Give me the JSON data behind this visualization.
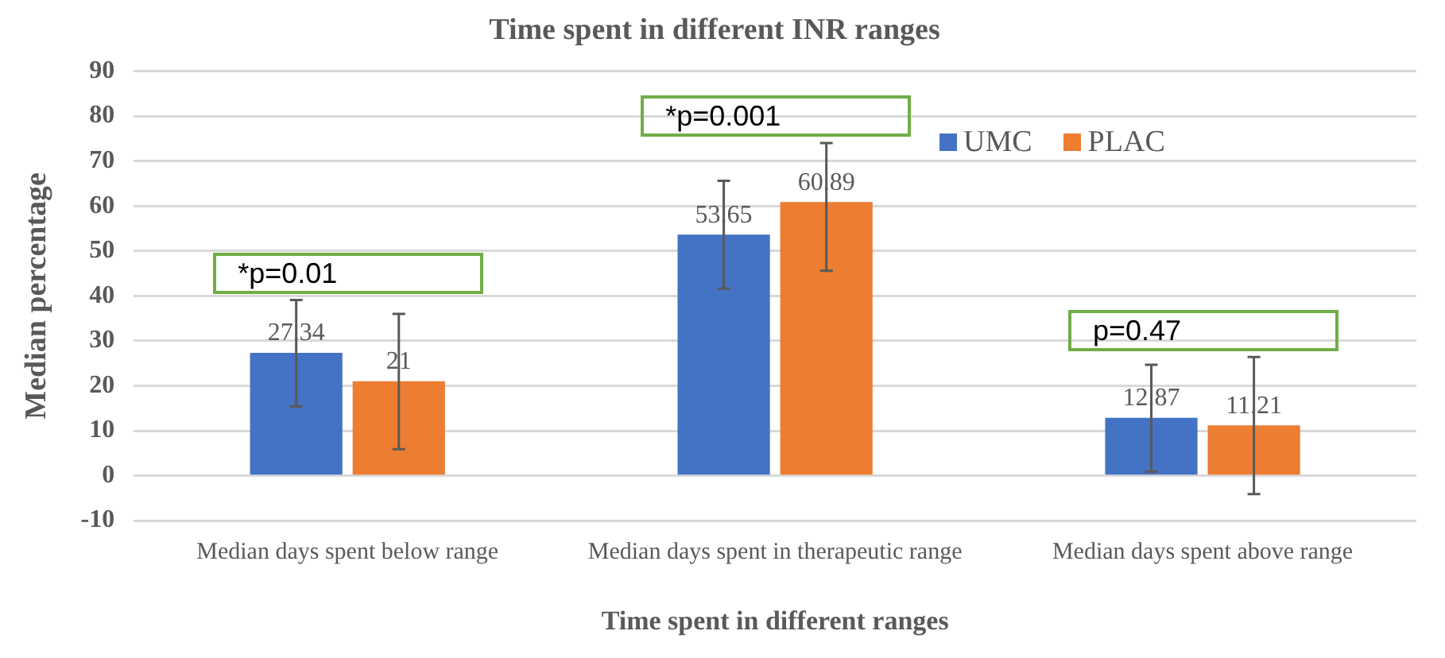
{
  "chart_data": {
    "type": "bar",
    "title": "Time spent in different INR ranges",
    "xlabel": "Time spent in different ranges",
    "ylabel": "Median percentage",
    "categories": [
      "Median days spent below range",
      "Median days spent in therapeutic range",
      "Median days spent above range"
    ],
    "series": [
      {
        "name": "UMC",
        "color": "#4472c4",
        "values": [
          27.34,
          53.65,
          12.87
        ],
        "errors": [
          [
            15.4,
            39.1
          ],
          [
            41.6,
            65.6
          ],
          [
            0.9,
            24.7
          ]
        ]
      },
      {
        "name": "PLAC",
        "color": "#ed7d31",
        "values": [
          21,
          60.89,
          11.21
        ],
        "errors": [
          [
            5.9,
            36.0
          ],
          [
            45.6,
            74
          ],
          [
            -4.1,
            26.4
          ]
        ]
      }
    ],
    "ylim": [
      -10,
      90
    ],
    "yticks": [
      -10,
      0,
      10,
      20,
      30,
      40,
      50,
      60,
      70,
      80,
      90
    ],
    "grid": "y",
    "legend": "top right",
    "data_labels": true,
    "annotations": [
      "*p=0.01",
      "*p=0.001",
      "p=0.47"
    ]
  }
}
